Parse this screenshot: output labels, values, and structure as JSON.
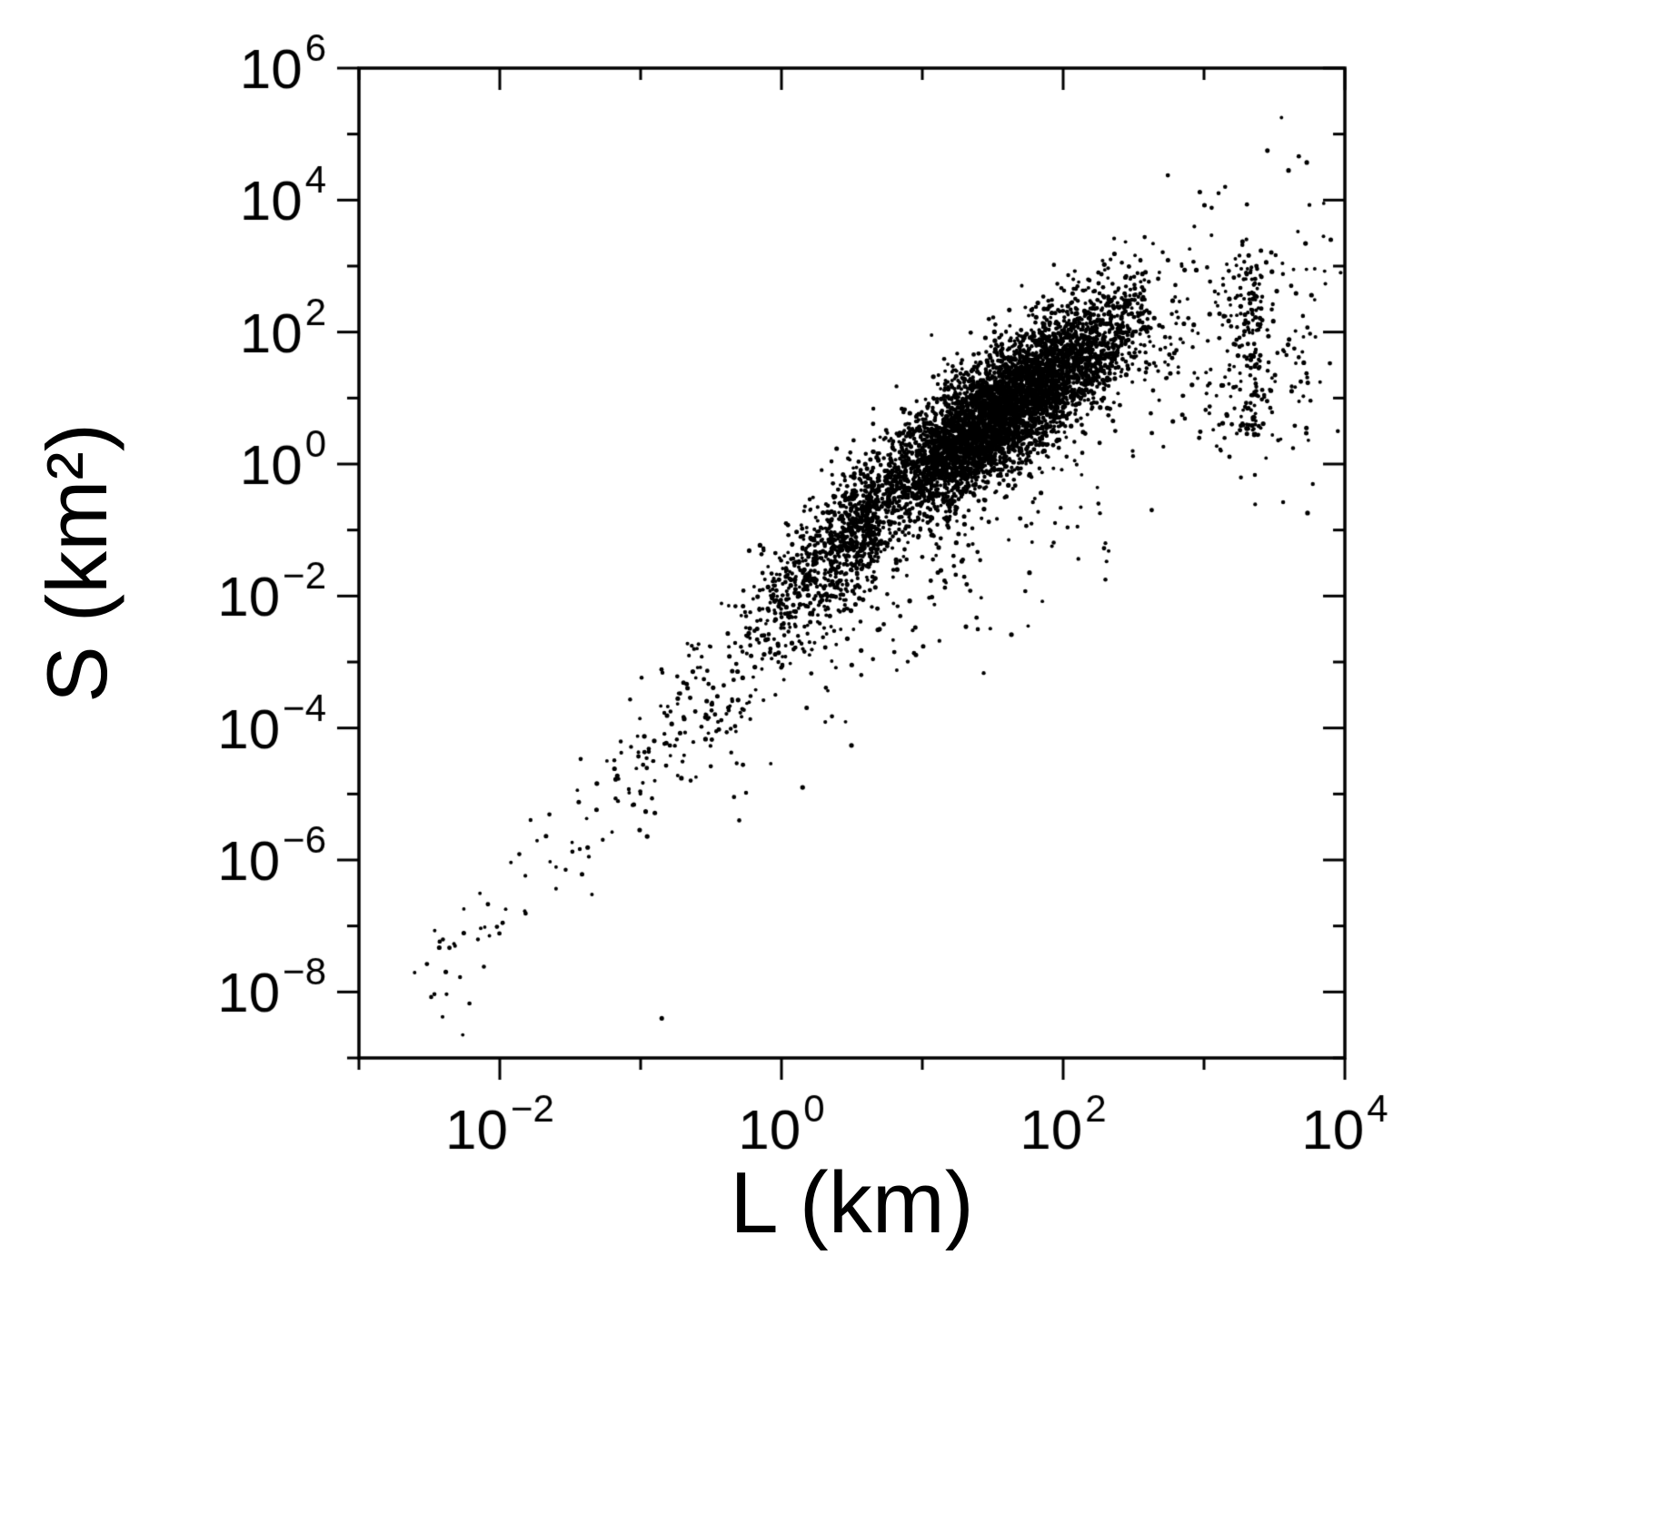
{
  "chart_data": {
    "type": "scatter",
    "title": "",
    "xlabel": "L (km)",
    "ylabel": "S (km²)",
    "x_scale": "log",
    "y_scale": "log",
    "xlim_log": [
      -3,
      4
    ],
    "ylim_log": [
      -9,
      6
    ],
    "x_major_ticks_log": [
      -2,
      0,
      2,
      4
    ],
    "x_minor_ticks_log": [
      -3,
      -1,
      1,
      3
    ],
    "y_major_ticks_log": [
      -8,
      -6,
      -4,
      -2,
      0,
      2,
      4,
      6
    ],
    "y_minor_ticks_log": [
      -9,
      -7,
      -5,
      -3,
      -1,
      1,
      3,
      5
    ],
    "tick_label_base": "10",
    "grid": false,
    "legend": "none",
    "background": "#ffffff",
    "frame_color": "#000000",
    "marker": {
      "shape": "dot",
      "color": "#000000",
      "radius_px": 2.2
    },
    "description": "Dense log-log scatter of S (km²) versus L (km) following roughly S ∝ L², spanning L = 10⁻³…10⁴ and S = 10⁻⁹…10⁶, with a dense core between L ≈ 2 and 500 km and sparse tails at both ends.",
    "point_cloud": {
      "seed": 1337,
      "clusters": [
        {
          "name": "far-left-tail",
          "n": 45,
          "logL": {
            "dist": "uniform",
            "min": -2.75,
            "max": -1.5,
            "bias": 0.8
          },
          "logS": {
            "model": "linear",
            "slope": 2.05,
            "intercept": -2.6,
            "sigma": 0.5
          }
        },
        {
          "name": "tail",
          "n": 170,
          "logL": {
            "dist": "uniform",
            "min": -1.5,
            "max": -0.2,
            "bias": 0.75
          },
          "logS": {
            "model": "linear",
            "slope": 2.05,
            "intercept": -2.45,
            "sigma": 0.55
          }
        },
        {
          "name": "mid-cloud",
          "n": 800,
          "logL": {
            "dist": "uniform",
            "min": -0.25,
            "max": 0.7,
            "bias": 0.65
          },
          "logS": {
            "model": "linear",
            "slope": 1.9,
            "intercept": -2.1,
            "sigma": 0.5
          }
        },
        {
          "name": "dense-core",
          "n": 5200,
          "logL": {
            "dist": "normal",
            "mean": 1.55,
            "sd": 0.48,
            "clip": [
              0.35,
              2.6
            ]
          },
          "logS": {
            "model": "linear",
            "slope": 1.5,
            "intercept": -1.55,
            "sigma": 0.48
          }
        },
        {
          "name": "right-scatter",
          "n": 240,
          "logL": {
            "dist": "uniform",
            "min": 2.6,
            "max": 3.9
          },
          "logS": {
            "model": "normal",
            "mean": 1.9,
            "sd": 1.0
          }
        },
        {
          "name": "right-vertical-band",
          "n": 150,
          "logL": {
            "dist": "normal",
            "mean": 3.33,
            "sd": 0.06
          },
          "logS": {
            "model": "uniform",
            "min": 0.4,
            "max": 3.2
          }
        },
        {
          "name": "low-stragglers",
          "n": 80,
          "logL": {
            "dist": "uniform",
            "min": 0.8,
            "max": 2.5
          },
          "logS": {
            "model": "linear",
            "slope": 1.3,
            "intercept": -3.3,
            "sigma": 0.7
          }
        },
        {
          "name": "below-tail",
          "n": 55,
          "logL": {
            "dist": "uniform",
            "min": -0.4,
            "max": 1.3
          },
          "logS": {
            "model": "linear",
            "slope": 1.8,
            "intercept": -3.6,
            "sigma": 0.6
          }
        }
      ],
      "outlier_points_log": [
        [
          3.55,
          5.25
        ],
        [
          3.45,
          4.75
        ],
        [
          3.6,
          4.45
        ],
        [
          3.15,
          4.2
        ],
        [
          3.85,
          3.95
        ],
        [
          3.9,
          3.4
        ],
        [
          3.97,
          2.9
        ],
        [
          3.95,
          0.5
        ],
        [
          2.3,
          -1.75
        ],
        [
          2.3,
          -1.2
        ],
        [
          2.25,
          -0.6
        ],
        [
          -0.85,
          -8.4
        ],
        [
          0.15,
          -4.9
        ],
        [
          -0.3,
          -5.4
        ]
      ]
    }
  }
}
